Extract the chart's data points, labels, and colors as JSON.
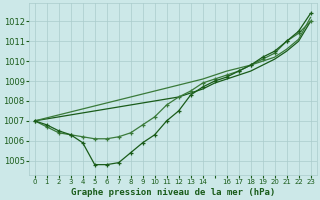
{
  "bg_color": "#cce8e8",
  "grid_color": "#aacccc",
  "line_color_dark": "#1a5c1a",
  "line_color_light": "#3a7a3a",
  "title": "Graphe pression niveau de la mer (hPa)",
  "ylabel_ticks": [
    1005,
    1006,
    1007,
    1008,
    1009,
    1010,
    1011,
    1012
  ],
  "xlim": [
    -0.5,
    23.5
  ],
  "ylim": [
    1004.3,
    1012.9
  ],
  "xtick_labels": [
    "0",
    "1",
    "2",
    "3",
    "4",
    "5",
    "6",
    "7",
    "8",
    "9",
    "10",
    "11",
    "12",
    "13",
    "14",
    "",
    "16",
    "17",
    "18",
    "19",
    "20",
    "21",
    "22",
    "23"
  ],
  "series_curved": [
    1007.0,
    1006.8,
    1006.5,
    1006.3,
    1005.9,
    1004.8,
    1004.8,
    1004.9,
    1005.4,
    1005.9,
    1006.3,
    1007.0,
    1007.5,
    1008.3,
    1008.7,
    1009.0,
    1009.2,
    1009.5,
    1009.8,
    1010.2,
    1010.5,
    1011.0,
    1011.5,
    1012.4
  ],
  "series_mid": [
    1007.0,
    1006.7,
    1006.4,
    1006.3,
    1006.2,
    1006.1,
    1006.1,
    1006.2,
    1006.4,
    1006.8,
    1007.2,
    1007.8,
    1008.2,
    1008.5,
    1008.9,
    1009.1,
    1009.3,
    1009.5,
    1009.8,
    1010.1,
    1010.4,
    1011.0,
    1011.4,
    1012.0
  ],
  "series_straight": [
    1007.0,
    1007.1,
    1007.2,
    1007.3,
    1007.4,
    1007.5,
    1007.6,
    1007.7,
    1007.8,
    1007.9,
    1008.0,
    1008.1,
    1008.2,
    1008.4,
    1008.6,
    1008.9,
    1009.1,
    1009.3,
    1009.5,
    1009.8,
    1010.1,
    1010.5,
    1011.0,
    1012.0
  ],
  "series_straight2": [
    1007.0,
    1007.15,
    1007.3,
    1007.45,
    1007.6,
    1007.75,
    1007.9,
    1008.05,
    1008.2,
    1008.35,
    1008.5,
    1008.65,
    1008.8,
    1008.95,
    1009.1,
    1009.3,
    1009.5,
    1009.65,
    1009.8,
    1010.0,
    1010.2,
    1010.6,
    1011.1,
    1012.2
  ]
}
